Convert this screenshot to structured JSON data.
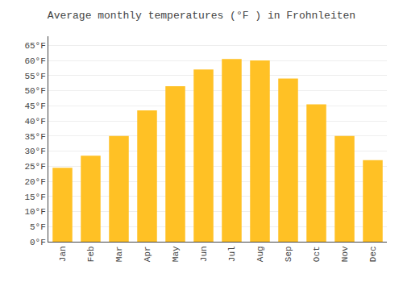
{
  "chart_data": {
    "type": "bar",
    "title": "Average monthly temperatures (°F ) in Frohnleiten",
    "categories": [
      "Jan",
      "Feb",
      "Mar",
      "Apr",
      "May",
      "Jun",
      "Jul",
      "Aug",
      "Sep",
      "Oct",
      "Nov",
      "Dec"
    ],
    "values": [
      24.5,
      28.5,
      35.0,
      43.5,
      51.5,
      57.0,
      60.5,
      60.0,
      54.0,
      45.5,
      35.0,
      27.0
    ],
    "color": "#FFC125",
    "ylim": [
      0,
      68
    ],
    "yticks": [
      {
        "value": 0,
        "label": "0°F"
      },
      {
        "value": 5,
        "label": "5°F"
      },
      {
        "value": 10,
        "label": "10°F"
      },
      {
        "value": 15,
        "label": "15°F"
      },
      {
        "value": 20,
        "label": "20°F"
      },
      {
        "value": 25,
        "label": "25°F"
      },
      {
        "value": 30,
        "label": "30°F"
      },
      {
        "value": 35,
        "label": "35°F"
      },
      {
        "value": 40,
        "label": "40°F"
      },
      {
        "value": 45,
        "label": "45°F"
      },
      {
        "value": 50,
        "label": "50°F"
      },
      {
        "value": 55,
        "label": "55°F"
      },
      {
        "value": 60,
        "label": "60°F"
      },
      {
        "value": 65,
        "label": "65°F"
      }
    ],
    "grid": true
  }
}
